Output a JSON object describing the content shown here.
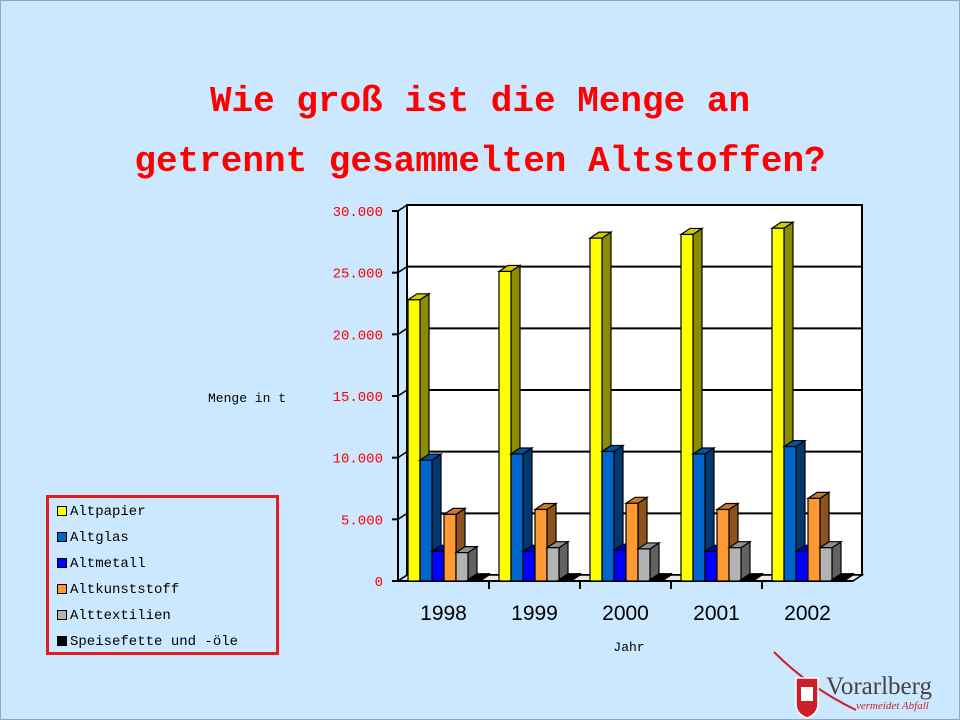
{
  "title": {
    "line1": "Wie groß ist die Menge an",
    "line2": "getrennt gesammelten Altstoffen?"
  },
  "chart_data": {
    "type": "bar",
    "categories": [
      "1998",
      "1999",
      "2000",
      "2001",
      "2002"
    ],
    "series": [
      {
        "name": "Altpapier",
        "color": "#ffff00",
        "values": [
          22800,
          25100,
          27800,
          28100,
          28600
        ]
      },
      {
        "name": "Altglas",
        "color": "#0066cc",
        "values": [
          9800,
          10300,
          10500,
          10300,
          10900
        ]
      },
      {
        "name": "Altmetall",
        "color": "#0000ff",
        "values": [
          2400,
          2400,
          2500,
          2400,
          2400
        ]
      },
      {
        "name": "Altkunststoff",
        "color": "#ff9933",
        "values": [
          5400,
          5800,
          6300,
          5800,
          6700
        ]
      },
      {
        "name": "Alttextilien",
        "color": "#b3b3b3",
        "values": [
          2300,
          2700,
          2600,
          2700,
          2700
        ]
      },
      {
        "name": "Speisefette und -öle",
        "color": "#000000",
        "values": [
          100,
          100,
          100,
          100,
          100
        ]
      }
    ],
    "ylim": [
      0,
      30000
    ],
    "yticks": [
      "0",
      "5.000",
      "10.000",
      "15.000",
      "20.000",
      "25.000",
      "30.000"
    ],
    "ylabel": "Menge in t",
    "xlabel": "Jahr",
    "grid": true,
    "legend_position": "bottom-left"
  },
  "logo": {
    "name": "Vorarlberg",
    "tagline": "vermeidet Abfall"
  }
}
